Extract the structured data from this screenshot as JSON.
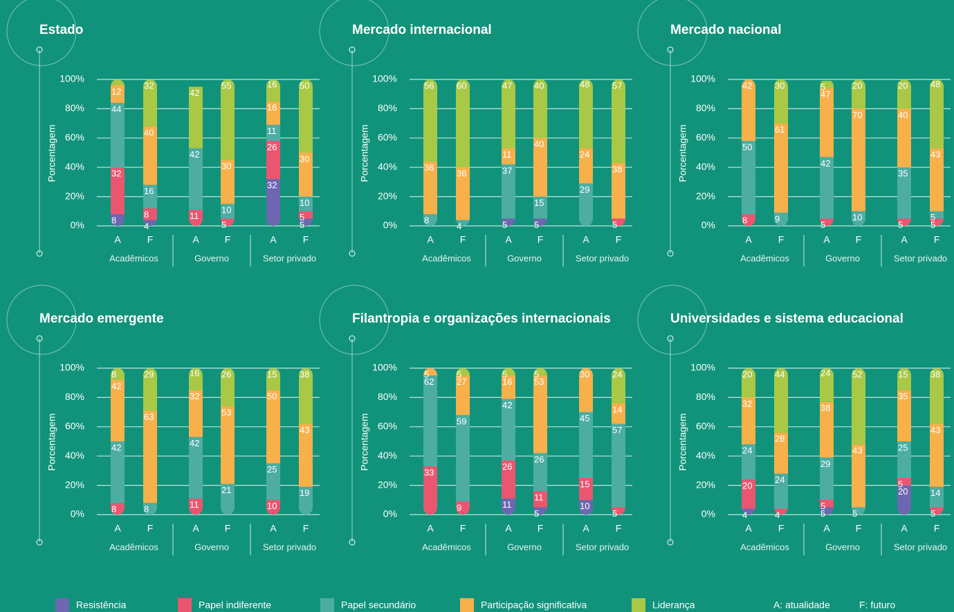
{
  "legend": {
    "items": [
      {
        "name": "Resistência",
        "color": "#6c67b0"
      },
      {
        "name": "Papel indiferente",
        "color": "#ea5670"
      },
      {
        "name": "Papel secundário",
        "color": "#4dada3"
      },
      {
        "name": "Participação significativa",
        "color": "#f8b04b"
      },
      {
        "name": "Liderança",
        "color": "#a8c846"
      }
    ],
    "notes": [
      "A: atualidade",
      "F: futuro"
    ]
  },
  "chart_data": [
    {
      "type": "stacked_bar",
      "title": "Estado",
      "y_label": "Porcentagem",
      "categories": [
        "A",
        "F",
        "A",
        "F",
        "A",
        "F"
      ],
      "groups": [
        "Acadêmicos",
        "Governo",
        "Setor privado"
      ],
      "ylim": [
        0,
        100
      ],
      "yticks": [
        {
          "value": 0,
          "label": "0%"
        },
        {
          "value": 20,
          "label": "20%"
        },
        {
          "value": 40,
          "label": "40%"
        },
        {
          "value": 60,
          "label": "60%"
        },
        {
          "value": 80,
          "label": "80%"
        },
        {
          "value": 100,
          "label": "100%"
        }
      ],
      "series": [
        {
          "values": [
            8,
            4,
            0,
            0,
            32,
            5
          ]
        },
        {
          "values": [
            32,
            8,
            11,
            5,
            26,
            5
          ]
        },
        {
          "values": [
            44,
            16,
            42,
            10,
            11,
            10
          ]
        },
        {
          "values": [
            12,
            40,
            0,
            30,
            16,
            30
          ]
        },
        {
          "values": [
            4,
            32,
            42,
            55,
            16,
            50
          ],
          "value_labels": [
            null,
            "32",
            "42",
            "55",
            "16",
            "50"
          ]
        }
      ]
    },
    {
      "type": "stacked_bar",
      "title": "Mercado internacional",
      "y_label": "Porcentagem",
      "categories": [
        "A",
        "F",
        "A",
        "F",
        "A",
        "F"
      ],
      "groups": [
        "Acadêmicos",
        "Governo",
        "Setor privado"
      ],
      "ylim": [
        0,
        100
      ],
      "yticks": [
        {
          "value": 0,
          "label": "0%"
        },
        {
          "value": 20,
          "label": "20%"
        },
        {
          "value": 40,
          "label": "40%"
        },
        {
          "value": 60,
          "label": "60%"
        },
        {
          "value": 80,
          "label": "80%"
        },
        {
          "value": 100,
          "label": "100%"
        }
      ],
      "series": [
        {
          "values": [
            0,
            0,
            5,
            5,
            0,
            0
          ]
        },
        {
          "values": [
            0,
            0,
            0,
            0,
            0,
            5
          ]
        },
        {
          "values": [
            8,
            4,
            37,
            15,
            29,
            0
          ]
        },
        {
          "values": [
            36,
            36,
            11,
            40,
            24,
            38
          ]
        },
        {
          "values": [
            56,
            60,
            47,
            40,
            48,
            57
          ]
        }
      ]
    },
    {
      "type": "stacked_bar",
      "title": "Mercado nacional",
      "y_label": "Porcentagem",
      "categories": [
        "A",
        "F",
        "A",
        "F",
        "A",
        "F"
      ],
      "groups": [
        "Acadêmicos",
        "Governo",
        "Setor privado"
      ],
      "ylim": [
        0,
        100
      ],
      "yticks": [
        {
          "value": 0,
          "label": "0%"
        },
        {
          "value": 20,
          "label": "20%"
        },
        {
          "value": 40,
          "label": "40%"
        },
        {
          "value": 60,
          "label": "60%"
        },
        {
          "value": 80,
          "label": "80%"
        },
        {
          "value": 100,
          "label": "100%"
        }
      ],
      "series": [
        {
          "values": [
            0,
            0,
            0,
            0,
            0,
            0
          ]
        },
        {
          "values": [
            8,
            0,
            5,
            0,
            5,
            5
          ]
        },
        {
          "values": [
            50,
            9,
            42,
            10,
            35,
            5
          ]
        },
        {
          "values": [
            42,
            61,
            47,
            70,
            40,
            43
          ]
        },
        {
          "values": [
            0,
            30,
            5,
            20,
            20,
            48
          ]
        }
      ]
    },
    {
      "type": "stacked_bar",
      "title": "Mercado emergente",
      "y_label": "Porcentagem",
      "categories": [
        "A",
        "F",
        "A",
        "F",
        "A",
        "F"
      ],
      "groups": [
        "Acadêmicos",
        "Governo",
        "Setor privado"
      ],
      "ylim": [
        0,
        100
      ],
      "yticks": [
        {
          "value": 0,
          "label": "0%"
        },
        {
          "value": 20,
          "label": "20%"
        },
        {
          "value": 40,
          "label": "40%"
        },
        {
          "value": 60,
          "label": "60%"
        },
        {
          "value": 80,
          "label": "80%"
        },
        {
          "value": 100,
          "label": "100%"
        }
      ],
      "series": [
        {
          "values": [
            0,
            0,
            0,
            0,
            0,
            0
          ]
        },
        {
          "values": [
            8,
            0,
            11,
            0,
            10,
            0
          ]
        },
        {
          "values": [
            42,
            8,
            42,
            21,
            25,
            19
          ]
        },
        {
          "values": [
            42,
            63,
            32,
            53,
            50,
            43
          ]
        },
        {
          "values": [
            8,
            29,
            16,
            26,
            15,
            38
          ]
        }
      ]
    },
    {
      "type": "stacked_bar",
      "title": "Filantropia e organizações internacionais",
      "y_label": "Porcentagem",
      "categories": [
        "A",
        "F",
        "A",
        "F",
        "A",
        "F"
      ],
      "groups": [
        "Acadêmicos",
        "Governo",
        "Setor privado"
      ],
      "ylim": [
        0,
        100
      ],
      "yticks": [
        {
          "value": 0,
          "label": "0%"
        },
        {
          "value": 20,
          "label": "20%"
        },
        {
          "value": 40,
          "label": "40%"
        },
        {
          "value": 60,
          "label": "60%"
        },
        {
          "value": 80,
          "label": "80%"
        },
        {
          "value": 100,
          "label": "100%"
        }
      ],
      "series": [
        {
          "values": [
            0,
            0,
            11,
            5,
            10,
            0
          ]
        },
        {
          "values": [
            33,
            9,
            26,
            11,
            15,
            5
          ]
        },
        {
          "values": [
            62,
            59,
            42,
            26,
            45,
            57
          ]
        },
        {
          "values": [
            5,
            27,
            16,
            53,
            30,
            14
          ]
        },
        {
          "values": [
            0,
            5,
            5,
            5,
            0,
            24
          ]
        }
      ]
    },
    {
      "type": "stacked_bar",
      "title": "Universidades e sistema educacional",
      "y_label": "Porcentagem",
      "categories": [
        "A",
        "F",
        "A",
        "F",
        "A",
        "F"
      ],
      "groups": [
        "Acadêmicos",
        "Governo",
        "Setor privado"
      ],
      "ylim": [
        0,
        100
      ],
      "yticks": [
        {
          "value": 0,
          "label": "0%"
        },
        {
          "value": 20,
          "label": "20%"
        },
        {
          "value": 40,
          "label": "40%"
        },
        {
          "value": 60,
          "label": "60%"
        },
        {
          "value": 80,
          "label": "80%"
        },
        {
          "value": 100,
          "label": "100%"
        }
      ],
      "series": [
        {
          "values": [
            4,
            0,
            5,
            0,
            20,
            0
          ]
        },
        {
          "values": [
            20,
            4,
            5,
            0,
            5,
            5
          ]
        },
        {
          "values": [
            24,
            24,
            29,
            5,
            25,
            14
          ]
        },
        {
          "values": [
            32,
            28,
            38,
            43,
            35,
            43
          ]
        },
        {
          "values": [
            20,
            44,
            24,
            52,
            15,
            38
          ]
        }
      ]
    }
  ]
}
